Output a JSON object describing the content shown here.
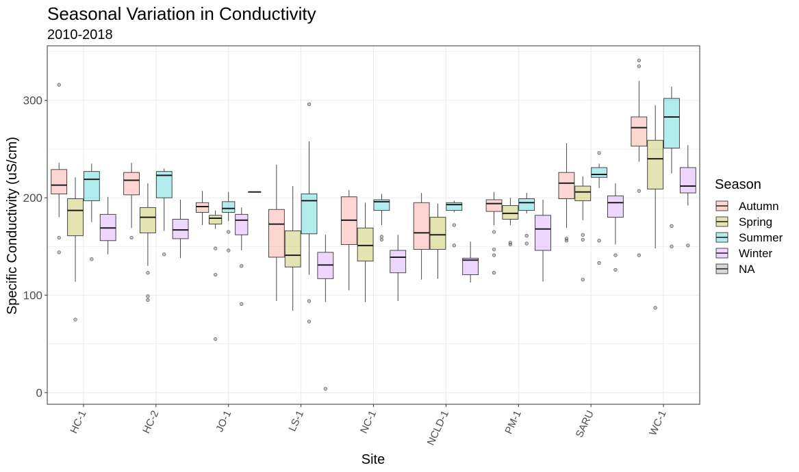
{
  "chart_data": {
    "type": "boxplot",
    "title": "Seasonal Variation in Conductivity",
    "subtitle": "2010-2018",
    "xlabel": "Site",
    "ylabel": "Specific Conductivity (uS/cm)",
    "ylim": [
      -12,
      356
    ],
    "yticks": [
      0,
      100,
      200,
      300
    ],
    "grid": true,
    "legend": {
      "title": "Season",
      "position": "right"
    },
    "categories": [
      "HC-1",
      "HC-2",
      "JO-1",
      "LS-1",
      "NC-1",
      "NCLD-1",
      "PM-1",
      "SARU",
      "WC-1"
    ],
    "series": [
      {
        "name": "Autumn",
        "color": "#F8766D"
      },
      {
        "name": "Spring",
        "color": "#A3A500"
      },
      {
        "name": "Summer",
        "color": "#00BFC4"
      },
      {
        "name": "Winter",
        "color": "#C77CFF"
      },
      {
        "name": "NA",
        "color": "#7F7F7F"
      }
    ],
    "boxes": [
      {
        "site": "HC-1",
        "season": "Autumn",
        "whisker_low": 180,
        "q1": 204,
        "median": 213,
        "q3": 229,
        "whisker_high": 236,
        "outliers": [
          316,
          159,
          144
        ]
      },
      {
        "site": "HC-1",
        "season": "Spring",
        "whisker_low": 114,
        "q1": 161,
        "median": 187,
        "q3": 199,
        "whisker_high": 221,
        "outliers": [
          75
        ]
      },
      {
        "site": "HC-1",
        "season": "Summer",
        "whisker_low": 175,
        "q1": 197,
        "median": 219,
        "q3": 227,
        "whisker_high": 235,
        "outliers": [
          137
        ]
      },
      {
        "site": "HC-1",
        "season": "Winter",
        "whisker_low": 142,
        "q1": 156,
        "median": 169,
        "q3": 183,
        "whisker_high": 201,
        "outliers": []
      },
      {
        "site": "HC-2",
        "season": "Autumn",
        "whisker_low": 169,
        "q1": 203,
        "median": 218,
        "q3": 226,
        "whisker_high": 236,
        "outliers": [
          159
        ]
      },
      {
        "site": "HC-2",
        "season": "Spring",
        "whisker_low": 130,
        "q1": 164,
        "median": 180,
        "q3": 190,
        "whisker_high": 215,
        "outliers": [
          123,
          99,
          95
        ]
      },
      {
        "site": "HC-2",
        "season": "Summer",
        "whisker_low": 166,
        "q1": 200,
        "median": 223,
        "q3": 227,
        "whisker_high": 230,
        "outliers": [
          142
        ]
      },
      {
        "site": "HC-2",
        "season": "Winter",
        "whisker_low": 138,
        "q1": 158,
        "median": 167,
        "q3": 178,
        "whisker_high": 198,
        "outliers": []
      },
      {
        "site": "JO-1",
        "season": "Autumn",
        "whisker_low": 172,
        "q1": 185,
        "median": 191,
        "q3": 195,
        "whisker_high": 207,
        "outliers": []
      },
      {
        "site": "JO-1",
        "season": "Spring",
        "whisker_low": 168,
        "q1": 173,
        "median": 179,
        "q3": 182,
        "whisker_high": 187,
        "outliers": [
          148,
          121,
          55
        ]
      },
      {
        "site": "JO-1",
        "season": "Summer",
        "whisker_low": 176,
        "q1": 185,
        "median": 189,
        "q3": 196,
        "whisker_high": 206,
        "outliers": [
          165,
          146
        ]
      },
      {
        "site": "JO-1",
        "season": "Winter",
        "whisker_low": 146,
        "q1": 162,
        "median": 177,
        "q3": 183,
        "whisker_high": 190,
        "outliers": [
          130,
          91
        ]
      },
      {
        "site": "JO-1",
        "season": "NA",
        "whisker_low": 206,
        "q1": 206,
        "median": 206,
        "q3": 206,
        "whisker_high": 206,
        "outliers": []
      },
      {
        "site": "LS-1",
        "season": "Autumn",
        "whisker_low": 94,
        "q1": 139,
        "median": 173,
        "q3": 188,
        "whisker_high": 234,
        "outliers": []
      },
      {
        "site": "LS-1",
        "season": "Spring",
        "whisker_low": 84,
        "q1": 129,
        "median": 141,
        "q3": 166,
        "whisker_high": 212,
        "outliers": []
      },
      {
        "site": "LS-1",
        "season": "Summer",
        "whisker_low": 121,
        "q1": 163,
        "median": 197,
        "q3": 204,
        "whisker_high": 258,
        "outliers": [
          296,
          94,
          73
        ]
      },
      {
        "site": "LS-1",
        "season": "Winter",
        "whisker_low": 93,
        "q1": 117,
        "median": 131,
        "q3": 144,
        "whisker_high": 162,
        "outliers": [
          4
        ]
      },
      {
        "site": "NC-1",
        "season": "Autumn",
        "whisker_low": 105,
        "q1": 152,
        "median": 177,
        "q3": 201,
        "whisker_high": 208,
        "outliers": []
      },
      {
        "site": "NC-1",
        "season": "Spring",
        "whisker_low": 93,
        "q1": 135,
        "median": 151,
        "q3": 169,
        "whisker_high": 195,
        "outliers": []
      },
      {
        "site": "NC-1",
        "season": "Summer",
        "whisker_low": 172,
        "q1": 187,
        "median": 196,
        "q3": 198,
        "whisker_high": 204,
        "outliers": [
          160,
          157
        ]
      },
      {
        "site": "NC-1",
        "season": "Winter",
        "whisker_low": 94,
        "q1": 123,
        "median": 139,
        "q3": 146,
        "whisker_high": 162,
        "outliers": []
      },
      {
        "site": "NCLD-1",
        "season": "Autumn",
        "whisker_low": 116,
        "q1": 147,
        "median": 164,
        "q3": 195,
        "whisker_high": 205,
        "outliers": []
      },
      {
        "site": "NCLD-1",
        "season": "Spring",
        "whisker_low": 117,
        "q1": 147,
        "median": 162,
        "q3": 180,
        "whisker_high": 194,
        "outliers": []
      },
      {
        "site": "NCLD-1",
        "season": "Summer",
        "whisker_low": 185,
        "q1": 187,
        "median": 193,
        "q3": 195,
        "whisker_high": 197,
        "outliers": [
          172,
          151
        ]
      },
      {
        "site": "NCLD-1",
        "season": "Winter",
        "whisker_low": 113,
        "q1": 121,
        "median": 136,
        "q3": 138,
        "whisker_high": 155,
        "outliers": []
      },
      {
        "site": "PM-1",
        "season": "Autumn",
        "whisker_low": 172,
        "q1": 186,
        "median": 194,
        "q3": 198,
        "whisker_high": 206,
        "outliers": [
          165,
          147,
          141,
          123
        ]
      },
      {
        "site": "PM-1",
        "season": "Spring",
        "whisker_low": 172,
        "q1": 178,
        "median": 184,
        "q3": 192,
        "whisker_high": 200,
        "outliers": [
          154,
          152
        ]
      },
      {
        "site": "PM-1",
        "season": "Summer",
        "whisker_low": 184,
        "q1": 187,
        "median": 195,
        "q3": 199,
        "whisker_high": 205,
        "outliers": [
          161,
          153
        ]
      },
      {
        "site": "PM-1",
        "season": "Winter",
        "whisker_low": 114,
        "q1": 146,
        "median": 168,
        "q3": 182,
        "whisker_high": 198,
        "outliers": []
      },
      {
        "site": "SARU",
        "season": "Autumn",
        "whisker_low": 169,
        "q1": 199,
        "median": 215,
        "q3": 226,
        "whisker_high": 256,
        "outliers": [
          158,
          156
        ]
      },
      {
        "site": "SARU",
        "season": "Spring",
        "whisker_low": 177,
        "q1": 197,
        "median": 206,
        "q3": 212,
        "whisker_high": 222,
        "outliers": [
          162,
          157,
          116
        ]
      },
      {
        "site": "SARU",
        "season": "Summer",
        "whisker_low": 210,
        "q1": 221,
        "median": 224,
        "q3": 231,
        "whisker_high": 235,
        "outliers": [
          246,
          156,
          133
        ]
      },
      {
        "site": "SARU",
        "season": "Winter",
        "whisker_low": 152,
        "q1": 180,
        "median": 195,
        "q3": 202,
        "whisker_high": 215,
        "outliers": [
          141,
          126
        ]
      },
      {
        "site": "WC-1",
        "season": "Autumn",
        "whisker_low": 237,
        "q1": 253,
        "median": 272,
        "q3": 283,
        "whisker_high": 320,
        "outliers": [
          341,
          335,
          207,
          141
        ]
      },
      {
        "site": "WC-1",
        "season": "Spring",
        "whisker_low": 148,
        "q1": 209,
        "median": 240,
        "q3": 259,
        "whisker_high": 295,
        "outliers": [
          87
        ]
      },
      {
        "site": "WC-1",
        "season": "Summer",
        "whisker_low": 225,
        "q1": 251,
        "median": 283,
        "q3": 302,
        "whisker_high": 314,
        "outliers": [
          171,
          150
        ]
      },
      {
        "site": "WC-1",
        "season": "Winter",
        "whisker_low": 192,
        "q1": 205,
        "median": 212,
        "q3": 231,
        "whisker_high": 254,
        "outliers": [
          151
        ]
      }
    ]
  }
}
